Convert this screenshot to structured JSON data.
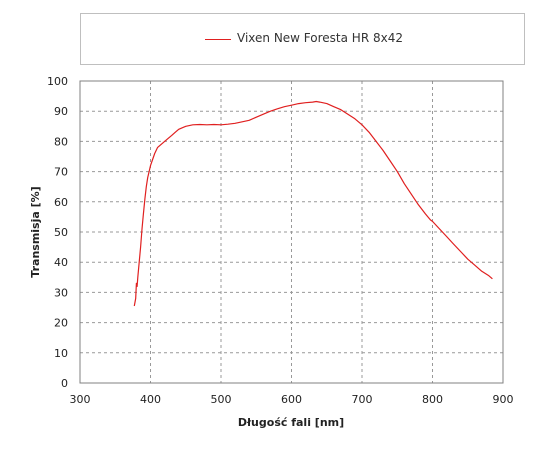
{
  "chart_data": {
    "type": "line",
    "title": "",
    "xlabel": "Długość fali [nm]",
    "ylabel": "Transmisja [%]",
    "xlim": [
      300,
      900
    ],
    "ylim": [
      0,
      100
    ],
    "xticks": [
      300,
      400,
      500,
      600,
      700,
      800,
      900
    ],
    "yticks": [
      0,
      10,
      20,
      30,
      40,
      50,
      60,
      70,
      80,
      90,
      100
    ],
    "grid": true,
    "legend_position": "top",
    "series": [
      {
        "name": "Vixen New Foresta HR 8x42",
        "color": "#e02020",
        "x": [
          377,
          379,
          380,
          381,
          382,
          384,
          386,
          388,
          390,
          392,
          394,
          396,
          398,
          400,
          403,
          406,
          410,
          415,
          420,
          425,
          430,
          435,
          440,
          445,
          450,
          460,
          470,
          480,
          490,
          500,
          510,
          520,
          530,
          540,
          550,
          560,
          570,
          580,
          590,
          600,
          610,
          620,
          630,
          635,
          640,
          650,
          660,
          670,
          680,
          690,
          700,
          710,
          720,
          730,
          740,
          750,
          760,
          770,
          780,
          790,
          797,
          800,
          810,
          820,
          830,
          840,
          850,
          860,
          870,
          880,
          885
        ],
        "y": [
          25.5,
          28,
          33,
          32,
          35,
          40,
          45,
          51,
          56,
          61,
          65,
          68,
          70,
          72,
          74,
          76,
          78,
          79,
          80,
          81,
          82,
          83,
          84,
          84.5,
          85,
          85.5,
          85.6,
          85.5,
          85.6,
          85.5,
          85.7,
          86,
          86.5,
          87,
          88,
          89,
          90,
          90.8,
          91.5,
          92,
          92.5,
          92.8,
          93,
          93.2,
          93,
          92.5,
          91.5,
          90.5,
          89,
          87.5,
          85.5,
          83,
          80,
          77,
          73.5,
          70,
          66,
          62.5,
          59,
          56,
          54,
          53.5,
          51,
          48.5,
          46,
          43.5,
          41,
          39,
          37,
          35.5,
          34.5
        ]
      }
    ]
  }
}
